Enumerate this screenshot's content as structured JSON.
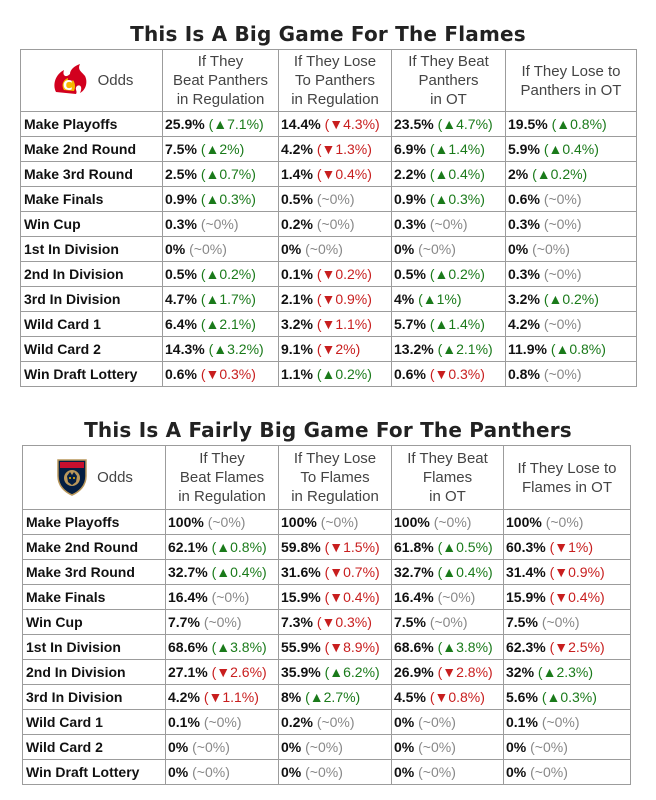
{
  "flames": {
    "title": "This Is A Big Game For The Flames",
    "odds_label": "Odds",
    "logo_icon": "flames-logo-icon",
    "headers": [
      "If They Beat Panthers in Regulation",
      "If They Lose To Panthers in Regulation",
      "If They Beat Panthers in OT",
      "If They Lose to Panthers in OT"
    ],
    "header_lines": [
      [
        "If They",
        "Beat Panthers",
        "in Regulation"
      ],
      [
        "If They Lose",
        "To Panthers",
        "in Regulation"
      ],
      [
        "If They Beat",
        "Panthers",
        "in OT"
      ],
      [
        "If They Lose to",
        "Panthers in OT"
      ]
    ],
    "rows": [
      {
        "label": "Make Playoffs",
        "cells": [
          {
            "v": "25.9%",
            "c": "(▲7.1%)",
            "d": "up"
          },
          {
            "v": "14.4%",
            "c": "(▼4.3%)",
            "d": "down"
          },
          {
            "v": "23.5%",
            "c": "(▲4.7%)",
            "d": "up"
          },
          {
            "v": "19.5%",
            "c": "(▲0.8%)",
            "d": "up"
          }
        ]
      },
      {
        "label": "Make 2nd Round",
        "cells": [
          {
            "v": "7.5%",
            "c": "(▲2%)",
            "d": "up"
          },
          {
            "v": "4.2%",
            "c": "(▼1.3%)",
            "d": "down"
          },
          {
            "v": "6.9%",
            "c": "(▲1.4%)",
            "d": "up"
          },
          {
            "v": "5.9%",
            "c": "(▲0.4%)",
            "d": "up"
          }
        ]
      },
      {
        "label": "Make 3rd Round",
        "cells": [
          {
            "v": "2.5%",
            "c": "(▲0.7%)",
            "d": "up"
          },
          {
            "v": "1.4%",
            "c": "(▼0.4%)",
            "d": "down"
          },
          {
            "v": "2.2%",
            "c": "(▲0.4%)",
            "d": "up"
          },
          {
            "v": "2%",
            "c": "(▲0.2%)",
            "d": "up"
          }
        ]
      },
      {
        "label": "Make Finals",
        "cells": [
          {
            "v": "0.9%",
            "c": "(▲0.3%)",
            "d": "up"
          },
          {
            "v": "0.5%",
            "c": "(~0%)",
            "d": "flat"
          },
          {
            "v": "0.9%",
            "c": "(▲0.3%)",
            "d": "up"
          },
          {
            "v": "0.6%",
            "c": "(~0%)",
            "d": "flat"
          }
        ]
      },
      {
        "label": "Win Cup",
        "cells": [
          {
            "v": "0.3%",
            "c": "(~0%)",
            "d": "flat"
          },
          {
            "v": "0.2%",
            "c": "(~0%)",
            "d": "flat"
          },
          {
            "v": "0.3%",
            "c": "(~0%)",
            "d": "flat"
          },
          {
            "v": "0.3%",
            "c": "(~0%)",
            "d": "flat"
          }
        ]
      },
      {
        "label": "1st In Division",
        "cells": [
          {
            "v": "0%",
            "c": "(~0%)",
            "d": "flat"
          },
          {
            "v": "0%",
            "c": "(~0%)",
            "d": "flat"
          },
          {
            "v": "0%",
            "c": "(~0%)",
            "d": "flat"
          },
          {
            "v": "0%",
            "c": "(~0%)",
            "d": "flat"
          }
        ]
      },
      {
        "label": "2nd In Division",
        "cells": [
          {
            "v": "0.5%",
            "c": "(▲0.2%)",
            "d": "up"
          },
          {
            "v": "0.1%",
            "c": "(▼0.2%)",
            "d": "down"
          },
          {
            "v": "0.5%",
            "c": "(▲0.2%)",
            "d": "up"
          },
          {
            "v": "0.3%",
            "c": "(~0%)",
            "d": "flat"
          }
        ]
      },
      {
        "label": "3rd In Division",
        "cells": [
          {
            "v": "4.7%",
            "c": "(▲1.7%)",
            "d": "up"
          },
          {
            "v": "2.1%",
            "c": "(▼0.9%)",
            "d": "down"
          },
          {
            "v": "4%",
            "c": "(▲1%)",
            "d": "up"
          },
          {
            "v": "3.2%",
            "c": "(▲0.2%)",
            "d": "up"
          }
        ]
      },
      {
        "label": "Wild Card 1",
        "cells": [
          {
            "v": "6.4%",
            "c": "(▲2.1%)",
            "d": "up"
          },
          {
            "v": "3.2%",
            "c": "(▼1.1%)",
            "d": "down"
          },
          {
            "v": "5.7%",
            "c": "(▲1.4%)",
            "d": "up"
          },
          {
            "v": "4.2%",
            "c": "(~0%)",
            "d": "flat"
          }
        ]
      },
      {
        "label": "Wild Card 2",
        "cells": [
          {
            "v": "14.3%",
            "c": "(▲3.2%)",
            "d": "up"
          },
          {
            "v": "9.1%",
            "c": "(▼2%)",
            "d": "down"
          },
          {
            "v": "13.2%",
            "c": "(▲2.1%)",
            "d": "up"
          },
          {
            "v": "11.9%",
            "c": "(▲0.8%)",
            "d": "up"
          }
        ]
      },
      {
        "label": "Win Draft Lottery",
        "cells": [
          {
            "v": "0.6%",
            "c": "(▼0.3%)",
            "d": "down"
          },
          {
            "v": "1.1%",
            "c": "(▲0.2%)",
            "d": "up"
          },
          {
            "v": "0.6%",
            "c": "(▼0.3%)",
            "d": "down"
          },
          {
            "v": "0.8%",
            "c": "(~0%)",
            "d": "flat"
          }
        ]
      }
    ]
  },
  "panthers": {
    "title": "This Is A Fairly Big Game For The Panthers",
    "odds_label": "Odds",
    "logo_icon": "panthers-logo-icon",
    "header_lines": [
      [
        "If They",
        "Beat Flames",
        "in Regulation"
      ],
      [
        "If They Lose",
        "To Flames",
        "in Regulation"
      ],
      [
        "If They Beat",
        "Flames",
        "in OT"
      ],
      [
        "If They Lose to",
        "Flames in OT"
      ]
    ],
    "rows": [
      {
        "label": "Make Playoffs",
        "cells": [
          {
            "v": "100%",
            "c": "(~0%)",
            "d": "flat"
          },
          {
            "v": "100%",
            "c": "(~0%)",
            "d": "flat"
          },
          {
            "v": "100%",
            "c": "(~0%)",
            "d": "flat"
          },
          {
            "v": "100%",
            "c": "(~0%)",
            "d": "flat"
          }
        ]
      },
      {
        "label": "Make 2nd Round",
        "cells": [
          {
            "v": "62.1%",
            "c": "(▲0.8%)",
            "d": "up"
          },
          {
            "v": "59.8%",
            "c": "(▼1.5%)",
            "d": "down"
          },
          {
            "v": "61.8%",
            "c": "(▲0.5%)",
            "d": "up"
          },
          {
            "v": "60.3%",
            "c": "(▼1%)",
            "d": "down"
          }
        ]
      },
      {
        "label": "Make 3rd Round",
        "cells": [
          {
            "v": "32.7%",
            "c": "(▲0.4%)",
            "d": "up"
          },
          {
            "v": "31.6%",
            "c": "(▼0.7%)",
            "d": "down"
          },
          {
            "v": "32.7%",
            "c": "(▲0.4%)",
            "d": "up"
          },
          {
            "v": "31.4%",
            "c": "(▼0.9%)",
            "d": "down"
          }
        ]
      },
      {
        "label": "Make Finals",
        "cells": [
          {
            "v": "16.4%",
            "c": "(~0%)",
            "d": "flat"
          },
          {
            "v": "15.9%",
            "c": "(▼0.4%)",
            "d": "down"
          },
          {
            "v": "16.4%",
            "c": "(~0%)",
            "d": "flat"
          },
          {
            "v": "15.9%",
            "c": "(▼0.4%)",
            "d": "down"
          }
        ]
      },
      {
        "label": "Win Cup",
        "cells": [
          {
            "v": "7.7%",
            "c": "(~0%)",
            "d": "flat"
          },
          {
            "v": "7.3%",
            "c": "(▼0.3%)",
            "d": "down"
          },
          {
            "v": "7.5%",
            "c": "(~0%)",
            "d": "flat"
          },
          {
            "v": "7.5%",
            "c": "(~0%)",
            "d": "flat"
          }
        ]
      },
      {
        "label": "1st In Division",
        "cells": [
          {
            "v": "68.6%",
            "c": "(▲3.8%)",
            "d": "up"
          },
          {
            "v": "55.9%",
            "c": "(▼8.9%)",
            "d": "down"
          },
          {
            "v": "68.6%",
            "c": "(▲3.8%)",
            "d": "up"
          },
          {
            "v": "62.3%",
            "c": "(▼2.5%)",
            "d": "down"
          }
        ]
      },
      {
        "label": "2nd In Division",
        "cells": [
          {
            "v": "27.1%",
            "c": "(▼2.6%)",
            "d": "down"
          },
          {
            "v": "35.9%",
            "c": "(▲6.2%)",
            "d": "up"
          },
          {
            "v": "26.9%",
            "c": "(▼2.8%)",
            "d": "down"
          },
          {
            "v": "32%",
            "c": "(▲2.3%)",
            "d": "up"
          }
        ]
      },
      {
        "label": "3rd In Division",
        "cells": [
          {
            "v": "4.2%",
            "c": "(▼1.1%)",
            "d": "down"
          },
          {
            "v": "8%",
            "c": "(▲2.7%)",
            "d": "up"
          },
          {
            "v": "4.5%",
            "c": "(▼0.8%)",
            "d": "down"
          },
          {
            "v": "5.6%",
            "c": "(▲0.3%)",
            "d": "up"
          }
        ]
      },
      {
        "label": "Wild Card 1",
        "cells": [
          {
            "v": "0.1%",
            "c": "(~0%)",
            "d": "flat"
          },
          {
            "v": "0.2%",
            "c": "(~0%)",
            "d": "flat"
          },
          {
            "v": "0%",
            "c": "(~0%)",
            "d": "flat"
          },
          {
            "v": "0.1%",
            "c": "(~0%)",
            "d": "flat"
          }
        ]
      },
      {
        "label": "Wild Card 2",
        "cells": [
          {
            "v": "0%",
            "c": "(~0%)",
            "d": "flat"
          },
          {
            "v": "0%",
            "c": "(~0%)",
            "d": "flat"
          },
          {
            "v": "0%",
            "c": "(~0%)",
            "d": "flat"
          },
          {
            "v": "0%",
            "c": "(~0%)",
            "d": "flat"
          }
        ]
      },
      {
        "label": "Win Draft Lottery",
        "cells": [
          {
            "v": "0%",
            "c": "(~0%)",
            "d": "flat"
          },
          {
            "v": "0%",
            "c": "(~0%)",
            "d": "flat"
          },
          {
            "v": "0%",
            "c": "(~0%)",
            "d": "flat"
          },
          {
            "v": "0%",
            "c": "(~0%)",
            "d": "flat"
          }
        ]
      }
    ]
  },
  "colors": {
    "up": "#1a7a1a",
    "down": "#c81e1e",
    "flat": "#888888",
    "flames_red": "#d2001e",
    "flames_yellow": "#f5b800",
    "panthers_navy": "#041e42",
    "panthers_red": "#c8102e",
    "panthers_gold": "#b9975b"
  }
}
